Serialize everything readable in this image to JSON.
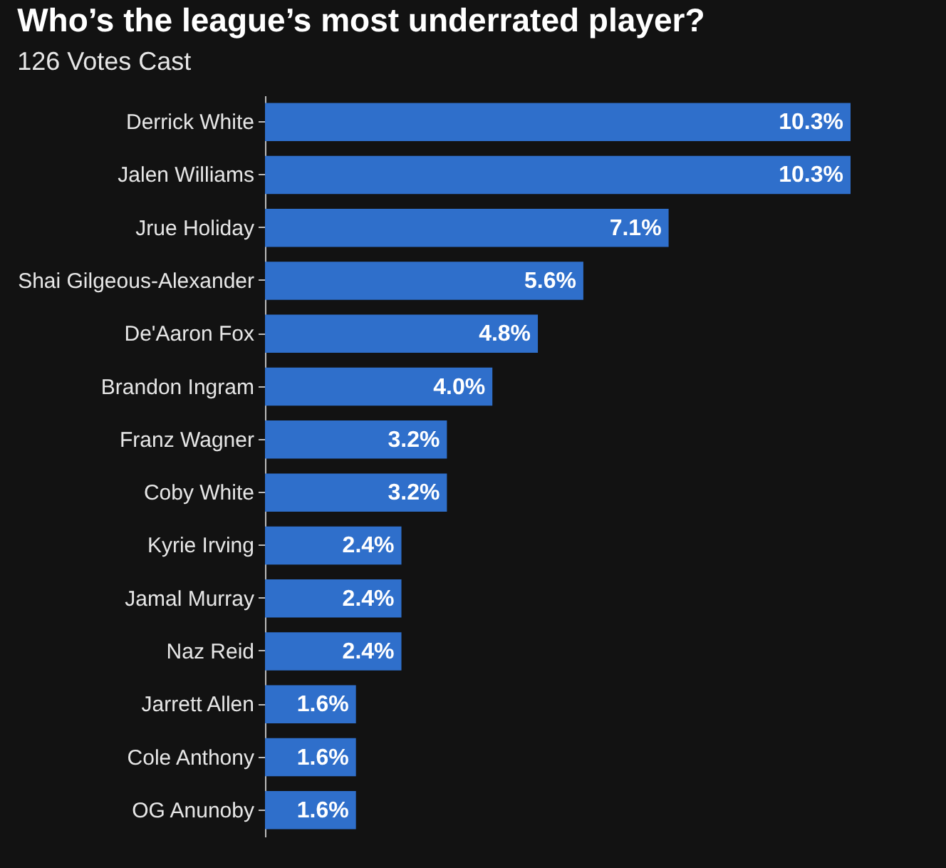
{
  "chart_data": {
    "type": "bar",
    "orientation": "horizontal",
    "title": "Who’s the league’s most underrated player?",
    "subtitle": "126 Votes Cast",
    "categories": [
      "Derrick White",
      "Jalen Williams",
      "Jrue Holiday",
      "Shai Gilgeous-Alexander",
      "De'Aaron Fox",
      "Brandon Ingram",
      "Franz Wagner",
      "Coby White",
      "Kyrie Irving",
      "Jamal Murray",
      "Naz Reid",
      "Jarrett Allen",
      "Cole Anthony",
      "OG Anunoby"
    ],
    "values": [
      10.3,
      10.3,
      7.1,
      5.6,
      4.8,
      4.0,
      3.2,
      3.2,
      2.4,
      2.4,
      2.4,
      1.6,
      1.6,
      1.6
    ],
    "value_labels": [
      "10.3%",
      "10.3%",
      "7.1%",
      "5.6%",
      "4.8%",
      "4.0%",
      "3.2%",
      "3.2%",
      "2.4%",
      "2.4%",
      "2.4%",
      "1.6%",
      "1.6%",
      "1.6%"
    ],
    "color": "#2f6fcb"
  }
}
